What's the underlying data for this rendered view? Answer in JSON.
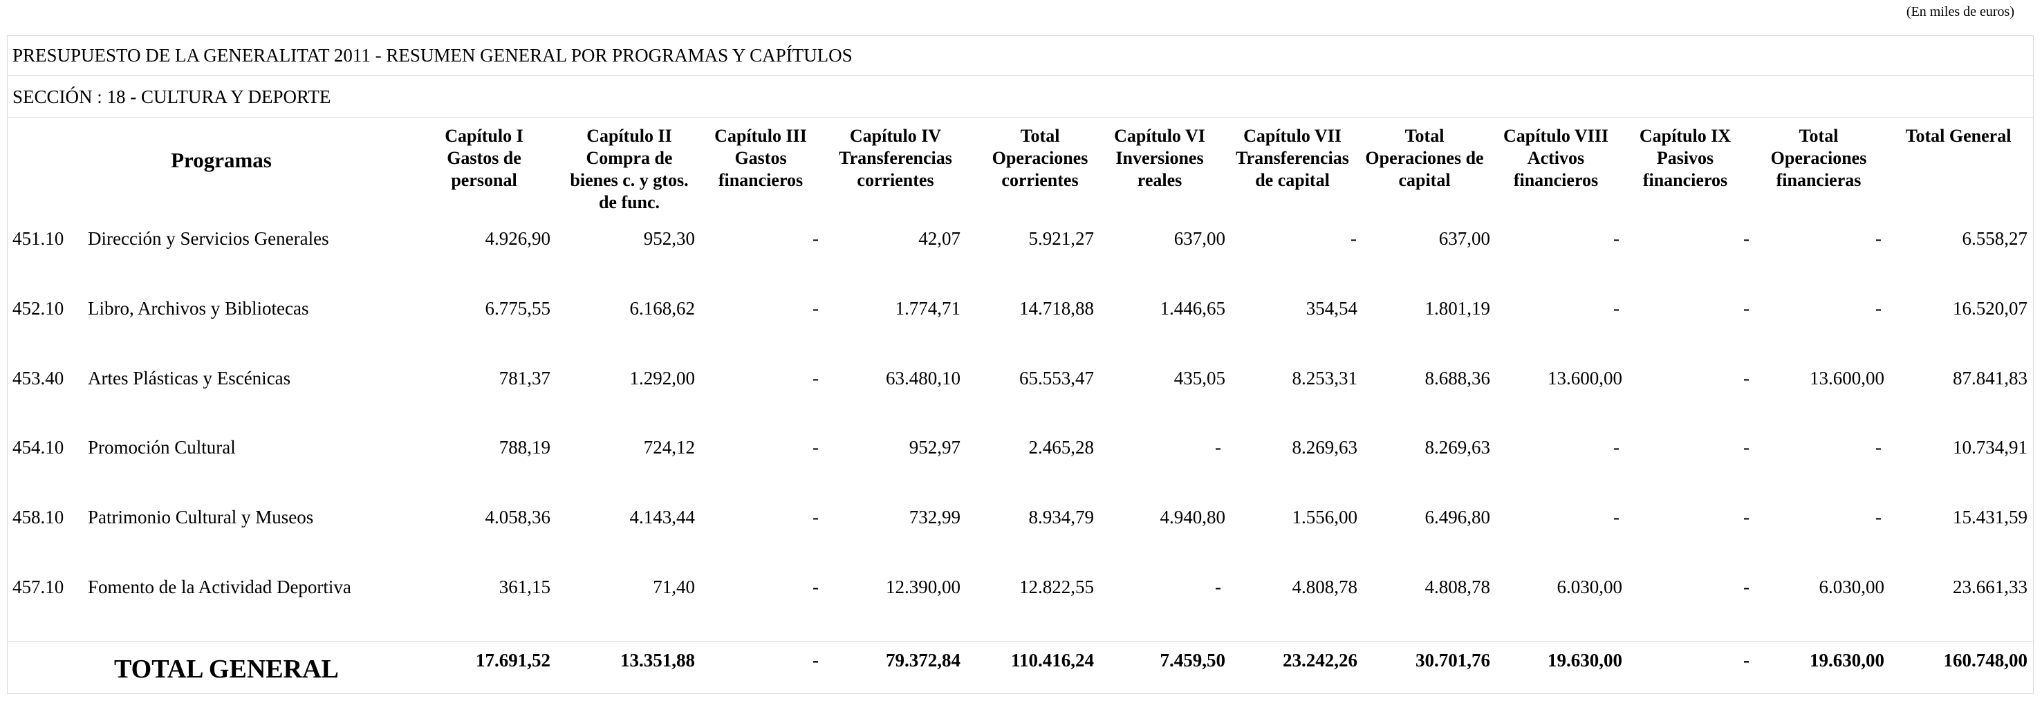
{
  "units_note": "(En miles de euros)",
  "title": "PRESUPUESTO DE LA GENERALITAT 2011 - RESUMEN GENERAL POR PROGRAMAS Y CAPÍTULOS",
  "section": "SECCIÓN : 18  -  CULTURA Y DEPORTE",
  "headers": {
    "programas": "Programas",
    "columns": [
      "Capítulo I\nGastos de\npersonal",
      "Capítulo II\nCompra de\nbienes c. y gtos.\nde func.",
      "Capítulo III\nGastos\nfinancieros",
      "Capítulo IV\nTransferencias\ncorrientes",
      "Total\nOperaciones\ncorrientes",
      "Capítulo VI\nInversiones\nreales",
      "Capítulo VII\nTransferencias\nde capital",
      "Total\nOperaciones de\ncapital",
      "Capítulo VIII\nActivos\nfinancieros",
      "Capítulo IX\nPasivos\nfinancieros",
      "Total\nOperaciones\nfinancieras",
      "Total General"
    ]
  },
  "rows": [
    {
      "code": "451.10",
      "name": "Dirección y Servicios Generales",
      "values": [
        "4.926,90",
        "952,30",
        "-",
        "42,07",
        "5.921,27",
        "637,00",
        "-",
        "637,00",
        "-",
        "-",
        "-",
        "6.558,27"
      ]
    },
    {
      "code": "452.10",
      "name": "Libro, Archivos y Bibliotecas",
      "values": [
        "6.775,55",
        "6.168,62",
        "-",
        "1.774,71",
        "14.718,88",
        "1.446,65",
        "354,54",
        "1.801,19",
        "-",
        "-",
        "-",
        "16.520,07"
      ]
    },
    {
      "code": "453.40",
      "name": "Artes Plásticas y Escénicas",
      "values": [
        "781,37",
        "1.292,00",
        "-",
        "63.480,10",
        "65.553,47",
        "435,05",
        "8.253,31",
        "8.688,36",
        "13.600,00",
        "-",
        "13.600,00",
        "87.841,83"
      ]
    },
    {
      "code": "454.10",
      "name": "Promoción Cultural",
      "values": [
        "788,19",
        "724,12",
        "-",
        "952,97",
        "2.465,28",
        "-",
        "8.269,63",
        "8.269,63",
        "-",
        "-",
        "-",
        "10.734,91"
      ]
    },
    {
      "code": "458.10",
      "name": "Patrimonio Cultural y Museos",
      "values": [
        "4.058,36",
        "4.143,44",
        "-",
        "732,99",
        "8.934,79",
        "4.940,80",
        "1.556,00",
        "6.496,80",
        "-",
        "-",
        "-",
        "15.431,59"
      ]
    },
    {
      "code": "457.10",
      "name": "Fomento de la Actividad Deportiva",
      "values": [
        "361,15",
        "71,40",
        "-",
        "12.390,00",
        "12.822,55",
        "-",
        "4.808,78",
        "4.808,78",
        "6.030,00",
        "-",
        "6.030,00",
        "23.661,33"
      ]
    }
  ],
  "total": {
    "label": "TOTAL GENERAL",
    "values": [
      "17.691,52",
      "13.351,88",
      "-",
      "79.372,84",
      "110.416,24",
      "7.459,50",
      "23.242,26",
      "30.701,76",
      "19.630,00",
      "-",
      "19.630,00",
      "160.748,00"
    ]
  }
}
